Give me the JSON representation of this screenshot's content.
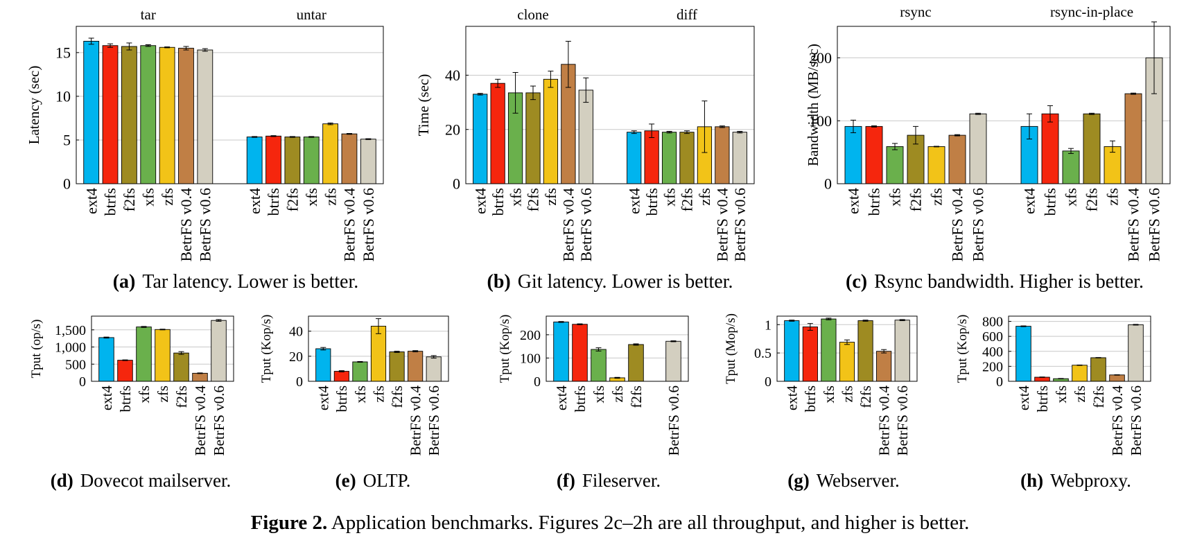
{
  "colors": {
    "ext4": "#00b4ee",
    "btrfs": "#f5260d",
    "xfs": "#6ab04c",
    "f2fs": "#9e8b22",
    "zfs": "#f2c318",
    "BetrFS v0.4": "#c07f45",
    "BetrFS v0.6": "#d3cfc0"
  },
  "figure_caption": {
    "label": "Figure 2.",
    "text": " Application benchmarks. Figures 2c–2h are all throughput, and higher is better."
  },
  "chart_data": [
    {
      "type": "bar",
      "caption_label": "(a)",
      "caption_text": "Tar latency. Lower is better.",
      "ylabel": "Latency (sec)",
      "ylim": [
        0,
        18
      ],
      "yticks": [
        0,
        5,
        10,
        15
      ],
      "ytick_labels": [
        "0",
        "5",
        "10",
        "15"
      ],
      "groups": [
        {
          "title": "tar",
          "categories": [
            "ext4",
            "btrfs",
            "f2fs",
            "xfs",
            "zfs",
            "BetrFS v0.4",
            "BetrFS v0.6"
          ],
          "values": [
            16.3,
            15.8,
            15.7,
            15.8,
            15.6,
            15.5,
            15.3
          ],
          "errors": [
            0.35,
            0.2,
            0.4,
            0.1,
            0.05,
            0.2,
            0.15
          ]
        },
        {
          "title": "untar",
          "categories": [
            "ext4",
            "btrfs",
            "f2fs",
            "xfs",
            "zfs",
            "BetrFS v0.4",
            "BetrFS v0.6"
          ],
          "values": [
            5.35,
            5.45,
            5.35,
            5.35,
            6.85,
            5.7,
            5.1
          ],
          "errors": [
            0.05,
            0.05,
            0.05,
            0.05,
            0.1,
            0.05,
            0.05
          ]
        }
      ]
    },
    {
      "type": "bar",
      "caption_label": "(b)",
      "caption_text": "Git latency. Lower is better.",
      "ylabel": "Time (sec)",
      "ylim": [
        0,
        58
      ],
      "yticks": [
        0,
        20,
        40
      ],
      "ytick_labels": [
        "0",
        "20",
        "40"
      ],
      "groups": [
        {
          "title": "clone",
          "categories": [
            "ext4",
            "btrfs",
            "xfs",
            "f2fs",
            "zfs",
            "BetrFS v0.4",
            "BetrFS v0.6"
          ],
          "values": [
            33,
            37,
            33.5,
            33.5,
            38.5,
            44,
            34.5
          ],
          "errors": [
            0.3,
            1.5,
            7.5,
            2.5,
            3,
            8.5,
            4.5
          ]
        },
        {
          "title": "diff",
          "categories": [
            "ext4",
            "btrfs",
            "xfs",
            "f2fs",
            "zfs",
            "BetrFS v0.4",
            "BetrFS v0.6"
          ],
          "values": [
            19,
            19.5,
            19,
            19,
            21,
            21,
            19
          ],
          "errors": [
            0.5,
            2.5,
            0.3,
            0.5,
            9.5,
            0.3,
            0.3
          ]
        }
      ]
    },
    {
      "type": "bar",
      "caption_label": "(c)",
      "caption_text": "Rsync bandwidth. Higher is better.",
      "ylabel": "Bandwidth (MB/sec)",
      "ylim": [
        0,
        250
      ],
      "yticks": [
        0,
        100,
        200
      ],
      "ytick_labels": [
        "0",
        "100",
        "200"
      ],
      "groups": [
        {
          "title": "rsync",
          "categories": [
            "ext4",
            "btrfs",
            "xfs",
            "f2fs",
            "zfs",
            "BetrFS v0.4",
            "BetrFS v0.6"
          ],
          "values": [
            91,
            91,
            59,
            77,
            59,
            77,
            111
          ],
          "errors": [
            10,
            1,
            5,
            14,
            0.5,
            1,
            1
          ]
        },
        {
          "title": "rsync-in-place",
          "categories": [
            "ext4",
            "btrfs",
            "xfs",
            "f2fs",
            "zfs",
            "BetrFS v0.4",
            "BetrFS v0.6"
          ],
          "values": [
            91,
            111,
            52,
            111,
            59,
            143,
            200
          ],
          "errors": [
            20,
            13,
            4,
            1,
            9,
            1,
            57
          ]
        }
      ]
    },
    {
      "type": "bar",
      "caption_label": "(d)",
      "caption_text": "Dovecot mailserver.",
      "ylabel": "Tput (op/s)",
      "ylim": [
        0,
        1900
      ],
      "yticks": [
        0,
        500,
        1000,
        1500
      ],
      "ytick_labels": [
        "0",
        "500",
        "1,000",
        "1,500"
      ],
      "groups": [
        {
          "title": "",
          "categories": [
            "ext4",
            "btrfs",
            "xfs",
            "zfs",
            "f2fs",
            "BetrFS v0.4",
            "BetrFS v0.6"
          ],
          "values": [
            1275,
            615,
            1585,
            1510,
            825,
            235,
            1775
          ],
          "errors": [
            15,
            10,
            15,
            10,
            40,
            10,
            25
          ]
        }
      ]
    },
    {
      "type": "bar",
      "caption_label": "(e)",
      "caption_text": "OLTP.",
      "ylabel": "Tput (Kop/s)",
      "ylim": [
        0,
        52
      ],
      "yticks": [
        0,
        20,
        40
      ],
      "ytick_labels": [
        "0",
        "20",
        "40"
      ],
      "groups": [
        {
          "title": "",
          "categories": [
            "ext4",
            "btrfs",
            "xfs",
            "zfs",
            "f2fs",
            "BetrFS v0.4",
            "BetrFS v0.6"
          ],
          "values": [
            26,
            8,
            15.5,
            44,
            23.5,
            24,
            19.5
          ],
          "errors": [
            1,
            0.5,
            0.3,
            6,
            0.5,
            0.5,
            1
          ]
        }
      ]
    },
    {
      "type": "bar",
      "caption_label": "(f)",
      "caption_text": "Fileserver.",
      "ylabel": "Tput (Kop/s)",
      "ylim": [
        0,
        280
      ],
      "yticks": [
        0,
        100,
        200
      ],
      "ytick_labels": [
        "0",
        "100",
        "200"
      ],
      "groups": [
        {
          "title": "",
          "categories": [
            "ext4",
            "btrfs",
            "xfs",
            "zfs",
            "f2fs",
            "",
            "BetrFS v0.6"
          ],
          "values": [
            255,
            245,
            137,
            15,
            158,
            null,
            172
          ],
          "errors": [
            2,
            2,
            7,
            2,
            3,
            null,
            2
          ]
        }
      ]
    },
    {
      "type": "bar",
      "caption_label": "(g)",
      "caption_text": "Webserver.",
      "ylabel": "Tput (Mop/s)",
      "ylim": [
        0,
        1.15
      ],
      "yticks": [
        0,
        0.5,
        1
      ],
      "ytick_labels": [
        "0",
        "0.5",
        "1"
      ],
      "groups": [
        {
          "title": "",
          "categories": [
            "ext4",
            "btrfs",
            "xfs",
            "zfs",
            "f2fs",
            "BetrFS v0.4",
            "BetrFS v0.6"
          ],
          "values": [
            1.07,
            0.96,
            1.1,
            0.69,
            1.07,
            0.53,
            1.08
          ],
          "errors": [
            0.01,
            0.06,
            0.015,
            0.04,
            0.01,
            0.03,
            0.01
          ]
        }
      ]
    },
    {
      "type": "bar",
      "caption_label": "(h)",
      "caption_text": "Webproxy.",
      "ylabel": "Tput (Kop/s)",
      "ylim": [
        0,
        870
      ],
      "yticks": [
        0,
        200,
        400,
        600,
        800
      ],
      "ytick_labels": [
        "0",
        "200",
        "400",
        "600",
        "800"
      ],
      "groups": [
        {
          "title": "",
          "categories": [
            "ext4",
            "btrfs",
            "xfs",
            "zfs",
            "f2fs",
            "BetrFS v0.4",
            "BetrFS v0.6"
          ],
          "values": [
            735,
            55,
            35,
            215,
            315,
            85,
            755
          ],
          "errors": [
            5,
            3,
            3,
            3,
            3,
            3,
            5
          ]
        }
      ]
    }
  ]
}
